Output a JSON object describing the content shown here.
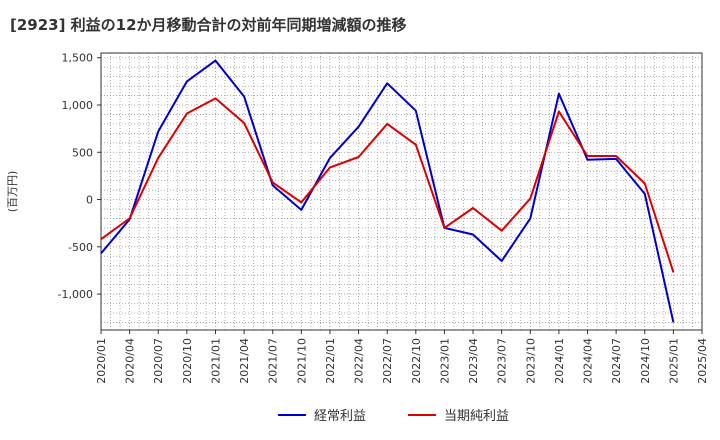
{
  "chart_data": {
    "type": "line",
    "title": "[2923]  利益の12か月移動合計の対前年同期増減額の推移",
    "xlabel": "",
    "ylabel": "(百万円)",
    "ylim": [
      -1380,
      1550
    ],
    "yticks": [
      1500,
      1000,
      500,
      0,
      -500,
      -1000
    ],
    "ytick_labels": [
      "1,500",
      "1,000",
      "500",
      "0",
      "-500",
      "-1,000"
    ],
    "categories": [
      "2020/01",
      "2020/04",
      "2020/07",
      "2020/10",
      "2021/01",
      "2021/04",
      "2021/07",
      "2021/10",
      "2022/01",
      "2022/04",
      "2022/07",
      "2022/10",
      "2023/01",
      "2023/04",
      "2023/07",
      "2023/10",
      "2024/01",
      "2024/04",
      "2024/07",
      "2024/10",
      "2025/01",
      "2025/04"
    ],
    "grid": true,
    "legend_position": "bottom-center",
    "series": [
      {
        "name": "経常利益",
        "color": "#0000cc",
        "values": [
          -570,
          -210,
          720,
          1250,
          1470,
          1090,
          150,
          -110,
          440,
          770,
          1230,
          940,
          -300,
          -370,
          -650,
          -200,
          1120,
          420,
          430,
          60,
          -1300,
          null
        ]
      },
      {
        "name": "当期純利益",
        "color": "#dd0000",
        "values": [
          -420,
          -200,
          440,
          910,
          1070,
          810,
          180,
          -30,
          340,
          450,
          800,
          580,
          -300,
          -90,
          -330,
          10,
          930,
          460,
          460,
          170,
          -770,
          null
        ]
      }
    ]
  }
}
